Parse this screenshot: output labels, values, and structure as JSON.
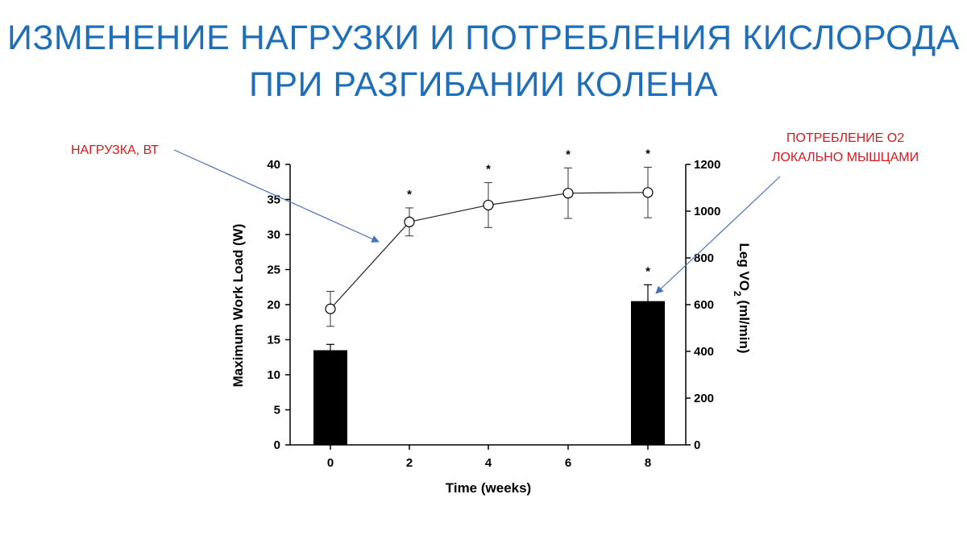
{
  "slide": {
    "title_line1": "ИЗМЕНЕНИЕ НАГРУЗКИ И ПОТРЕБЛЕНИЯ КИСЛОРОДА",
    "title_line2": "ПРИ РАЗГИБАНИИ КОЛЕНА",
    "annotation_left": "НАГРУЗКА, ВТ",
    "annotation_right_line1": "ПОТРЕБЛЕНИЕ О2",
    "annotation_right_line2": "ЛОКАЛЬНО МЫШЦАМИ",
    "title_color": "#1f6fb8",
    "annotation_color": "#d9191c",
    "arrow_color": "#4a72b8"
  },
  "chart_data": {
    "type": "bar",
    "xlabel": "Time (weeks)",
    "ylabel": "Maximum Work Load (W)",
    "y2label_main": "Leg VO",
    "y2label_sub": "2",
    "y2label_units": " (ml/min)",
    "categories": [
      "0",
      "2",
      "4",
      "6",
      "8"
    ],
    "x_values": [
      0,
      2,
      4,
      6,
      8
    ],
    "ylim": [
      0,
      40
    ],
    "yticks": [
      0,
      5,
      10,
      15,
      20,
      25,
      30,
      35,
      40
    ],
    "y2lim": [
      0,
      1200
    ],
    "y2ticks": [
      0,
      200,
      400,
      600,
      800,
      1000,
      1200
    ],
    "line_series": {
      "type": "line",
      "axis": "left",
      "marker": "open-circle",
      "x": [
        0,
        2,
        4,
        6,
        8
      ],
      "values": [
        19.4,
        31.8,
        34.2,
        35.9,
        36.0
      ],
      "errors": [
        2.5,
        2.0,
        3.2,
        3.6,
        3.6
      ],
      "significance": [
        "",
        "*",
        "*",
        "*",
        "*"
      ]
    },
    "bar_series": {
      "type": "bar",
      "axis": "right",
      "color": "#000000",
      "x": [
        0,
        8
      ],
      "values": [
        405,
        615
      ],
      "errors": [
        25,
        70
      ],
      "significance": [
        "",
        "*"
      ]
    }
  }
}
